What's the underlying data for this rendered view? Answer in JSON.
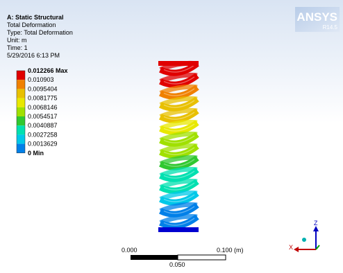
{
  "header": {
    "title": "A: Static Structural",
    "lines": [
      "Total Deformation",
      "Type: Total Deformation",
      "Unit: m",
      "Time: 1",
      "5/29/2016 6:13 PM"
    ]
  },
  "legend": {
    "labels": [
      "0.012266 Max",
      "0.010903",
      "0.0095404",
      "0.0081775",
      "0.0068146",
      "0.0054517",
      "0.0040887",
      "0.0027258",
      "0.0013629",
      "0 Min"
    ],
    "colors": [
      "#e00000",
      "#f08000",
      "#e8c000",
      "#e8e800",
      "#a0e000",
      "#30c830",
      "#00e0b0",
      "#00c8e8",
      "#0080e8",
      "#0000d0"
    ]
  },
  "scale": {
    "start": "0.000",
    "end": "0.100 (m)",
    "mid": "0.050"
  },
  "triad": {
    "z": "Z",
    "x": "X"
  },
  "logo": {
    "name": "ANSYS",
    "version": "R14.5"
  }
}
